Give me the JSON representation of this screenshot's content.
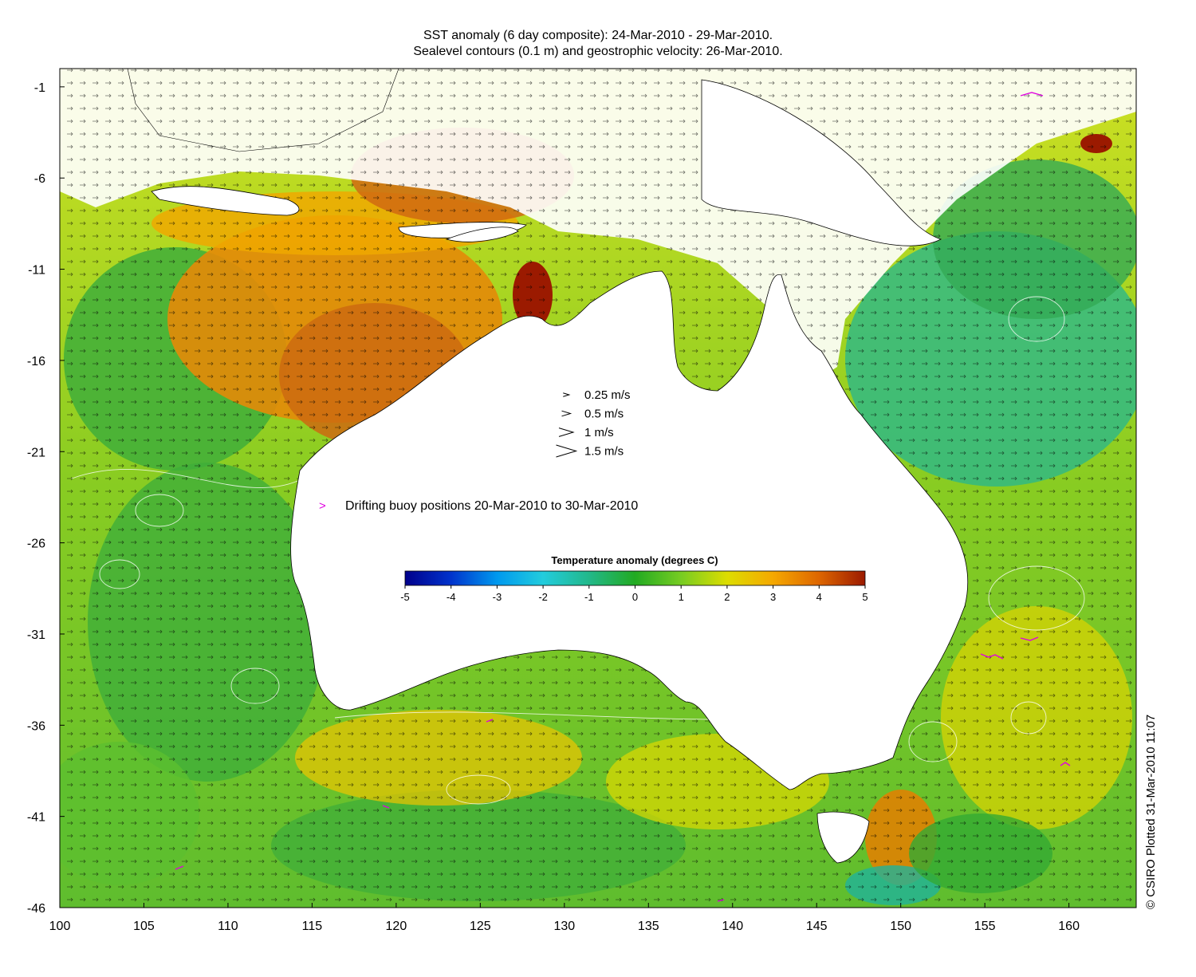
{
  "title": {
    "line1": "SST anomaly (6 day composite): 24-Mar-2010 - 29-Mar-2010.",
    "line2": "Sealevel contours (0.1 m) and geostrophic velocity: 26-Mar-2010."
  },
  "axes": {
    "x_ticks": [
      "100",
      "105",
      "110",
      "115",
      "120",
      "125",
      "130",
      "135",
      "140",
      "145",
      "150",
      "155",
      "160"
    ],
    "y_ticks": [
      "-1",
      "-6",
      "-11",
      "-16",
      "-21",
      "-26",
      "-31",
      "-36",
      "-41",
      "-46"
    ],
    "xlim": [
      100,
      164
    ],
    "ylim": [
      -46,
      0
    ]
  },
  "velocity_legend": [
    {
      "label": "0.25 m/s",
      "speed": 0.25
    },
    {
      "label": "0.5 m/s",
      "speed": 0.5
    },
    {
      "label": "1 m/s",
      "speed": 1
    },
    {
      "label": "1.5 m/s",
      "speed": 1.5
    }
  ],
  "buoy_legend": {
    "label": "Drifting buoy positions 20-Mar-2010 to 30-Mar-2010",
    "color": "#e000e0"
  },
  "colorbar": {
    "title": "Temperature anomaly (degrees C)",
    "ticks": [
      "-5",
      "-4",
      "-3",
      "-2",
      "-1",
      "0",
      "1",
      "2",
      "3",
      "4",
      "5"
    ],
    "range": [
      -5,
      5
    ],
    "colors": [
      "#00008b",
      "#0033cc",
      "#0099ee",
      "#22ccdd",
      "#22b88a",
      "#22aa22",
      "#77cc22",
      "#dddd00",
      "#f5a800",
      "#dd6600",
      "#9b1a00"
    ]
  },
  "credit": "© CSIRO Plotted 31-Mar-2010 11:07"
}
